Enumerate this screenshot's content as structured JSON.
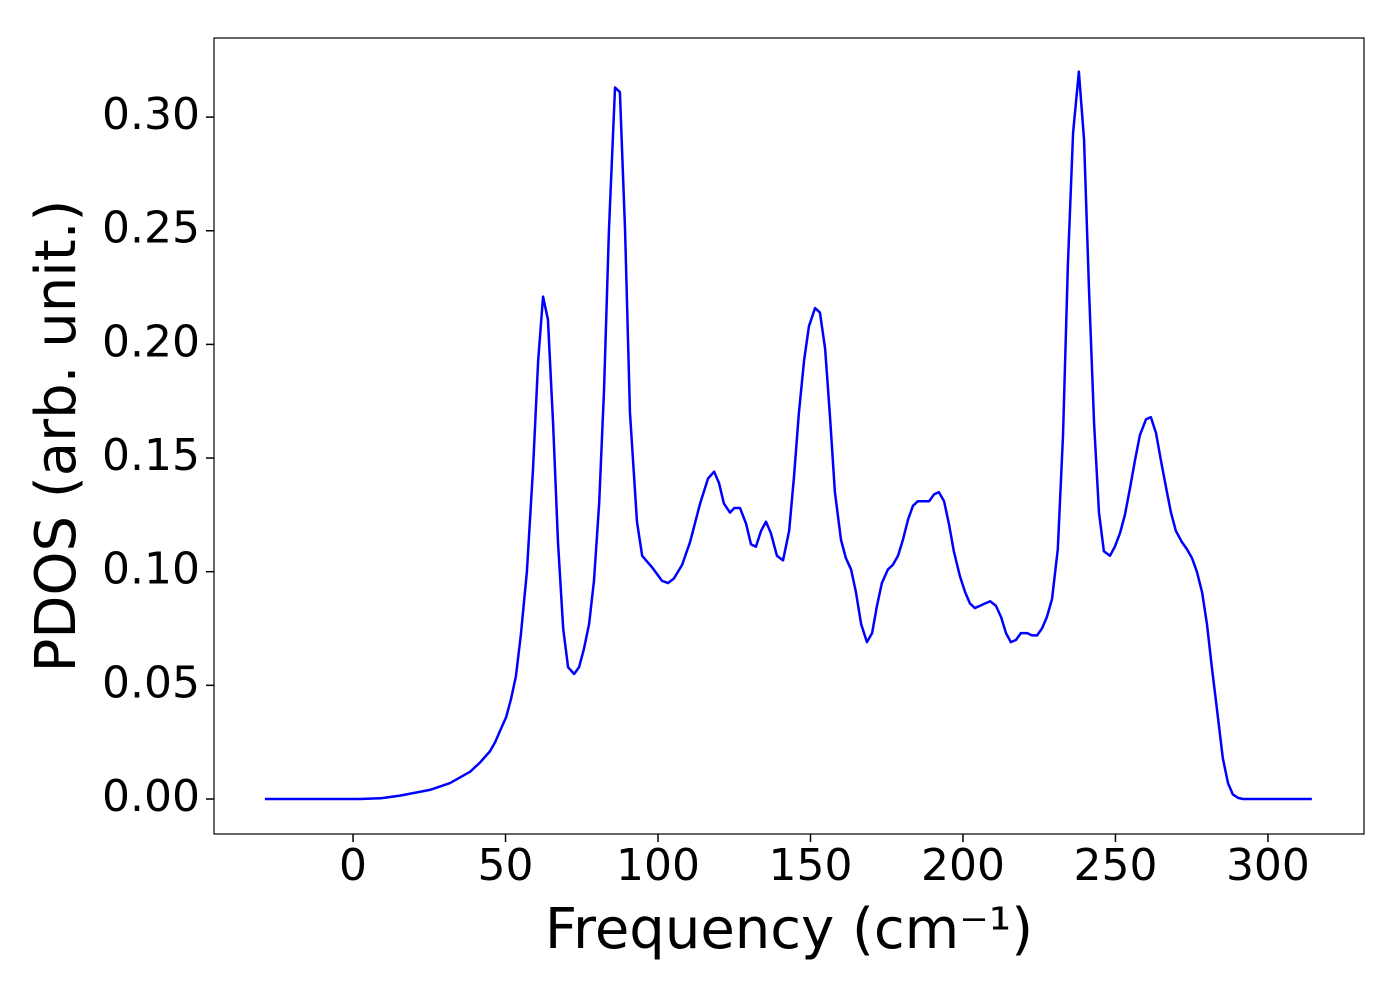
{
  "chart_data": {
    "type": "line",
    "x_label": "Frequency (cm⁻¹)",
    "y_label": "PDOS (arb. unit.)",
    "color": "#0000ff",
    "x": [
      -28.9,
      2.3,
      8.9,
      15.4,
      25.2,
      31.8,
      38.4,
      41.6,
      44.9,
      46.6,
      48.2,
      50.2,
      51.8,
      53.4,
      55,
      57,
      59,
      60.7,
      62.3,
      63.9,
      65.6,
      67.2,
      68.9,
      70.5,
      72.5,
      74.1,
      75.7,
      77.4,
      79,
      80.7,
      82.3,
      83.9,
      85.9,
      87.5,
      89.2,
      90.8,
      93.1,
      94.8,
      98,
      101.3,
      103.3,
      105.2,
      107.9,
      110.5,
      113.8,
      116.4,
      118.4,
      120,
      121.6,
      123.6,
      125,
      126.9,
      128.9,
      130.5,
      132.1,
      133.8,
      135.4,
      137,
      139,
      141,
      143,
      144.6,
      146.2,
      147.9,
      149.5,
      151.5,
      153.1,
      154.8,
      156.4,
      158,
      160,
      161.6,
      163.3,
      164.9,
      166.6,
      168.5,
      170.2,
      171.8,
      173.4,
      175.4,
      177,
      178.7,
      180.3,
      182,
      183.6,
      185.2,
      186.9,
      188.9,
      190.5,
      192.1,
      193.8,
      195.4,
      197,
      199,
      200.7,
      202.3,
      203.9,
      205.6,
      207.2,
      208.9,
      210.8,
      212.5,
      214.1,
      215.7,
      217.4,
      219,
      221,
      222.6,
      224.3,
      225.9,
      227.5,
      229.2,
      231.1,
      232.8,
      234.4,
      236.1,
      238,
      239.7,
      241.3,
      243,
      244.6,
      246.2,
      248.2,
      249.8,
      251.5,
      253.1,
      254.8,
      256.4,
      258,
      260,
      261.6,
      263.3,
      264.9,
      266.6,
      268.2,
      269.8,
      271.8,
      273.4,
      275.1,
      276.7,
      278.4,
      280,
      281.6,
      283.6,
      285.2,
      286.9,
      288.5,
      290.2,
      291.8,
      314.4
    ],
    "values": [
      0,
      0,
      0.0003,
      0.0015,
      0.004,
      0.007,
      0.012,
      0.016,
      0.021,
      0.025,
      0.03,
      0.036,
      0.044,
      0.054,
      0.072,
      0.1,
      0.145,
      0.193,
      0.221,
      0.211,
      0.165,
      0.113,
      0.075,
      0.058,
      0.055,
      0.058,
      0.066,
      0.077,
      0.096,
      0.13,
      0.18,
      0.25,
      0.313,
      0.311,
      0.25,
      0.17,
      0.122,
      0.107,
      0.102,
      0.096,
      0.095,
      0.097,
      0.103,
      0.113,
      0.13,
      0.141,
      0.144,
      0.139,
      0.13,
      0.126,
      0.128,
      0.128,
      0.121,
      0.112,
      0.111,
      0.118,
      0.122,
      0.117,
      0.107,
      0.105,
      0.118,
      0.142,
      0.17,
      0.193,
      0.208,
      0.216,
      0.214,
      0.198,
      0.168,
      0.135,
      0.114,
      0.106,
      0.101,
      0.091,
      0.077,
      0.069,
      0.073,
      0.085,
      0.095,
      0.101,
      0.103,
      0.107,
      0.114,
      0.123,
      0.129,
      0.131,
      0.131,
      0.131,
      0.134,
      0.135,
      0.131,
      0.121,
      0.109,
      0.098,
      0.091,
      0.086,
      0.084,
      0.085,
      0.086,
      0.087,
      0.085,
      0.08,
      0.073,
      0.069,
      0.07,
      0.073,
      0.073,
      0.072,
      0.072,
      0.075,
      0.08,
      0.088,
      0.11,
      0.16,
      0.235,
      0.293,
      0.32,
      0.29,
      0.225,
      0.165,
      0.126,
      0.109,
      0.107,
      0.111,
      0.117,
      0.125,
      0.137,
      0.149,
      0.16,
      0.167,
      0.168,
      0.161,
      0.149,
      0.137,
      0.126,
      0.118,
      0.113,
      0.11,
      0.106,
      0.1,
      0.091,
      0.077,
      0.058,
      0.036,
      0.018,
      0.007,
      0.002,
      0.0005,
      0,
      0
    ],
    "xlim": [
      -45.6,
      331.5
    ],
    "ylim": [
      -0.0154,
      0.3348
    ],
    "xticks": [
      0,
      50,
      100,
      150,
      200,
      250,
      300
    ],
    "yticks": [
      {
        "value": 0,
        "label": "0.00"
      },
      0.05,
      {
        "value": 0.1,
        "label": "0.10"
      },
      0.15,
      {
        "value": 0.2,
        "label": "0.20"
      },
      0.25,
      {
        "value": 0.3,
        "label": "0.30"
      }
    ],
    "grid": false
  }
}
